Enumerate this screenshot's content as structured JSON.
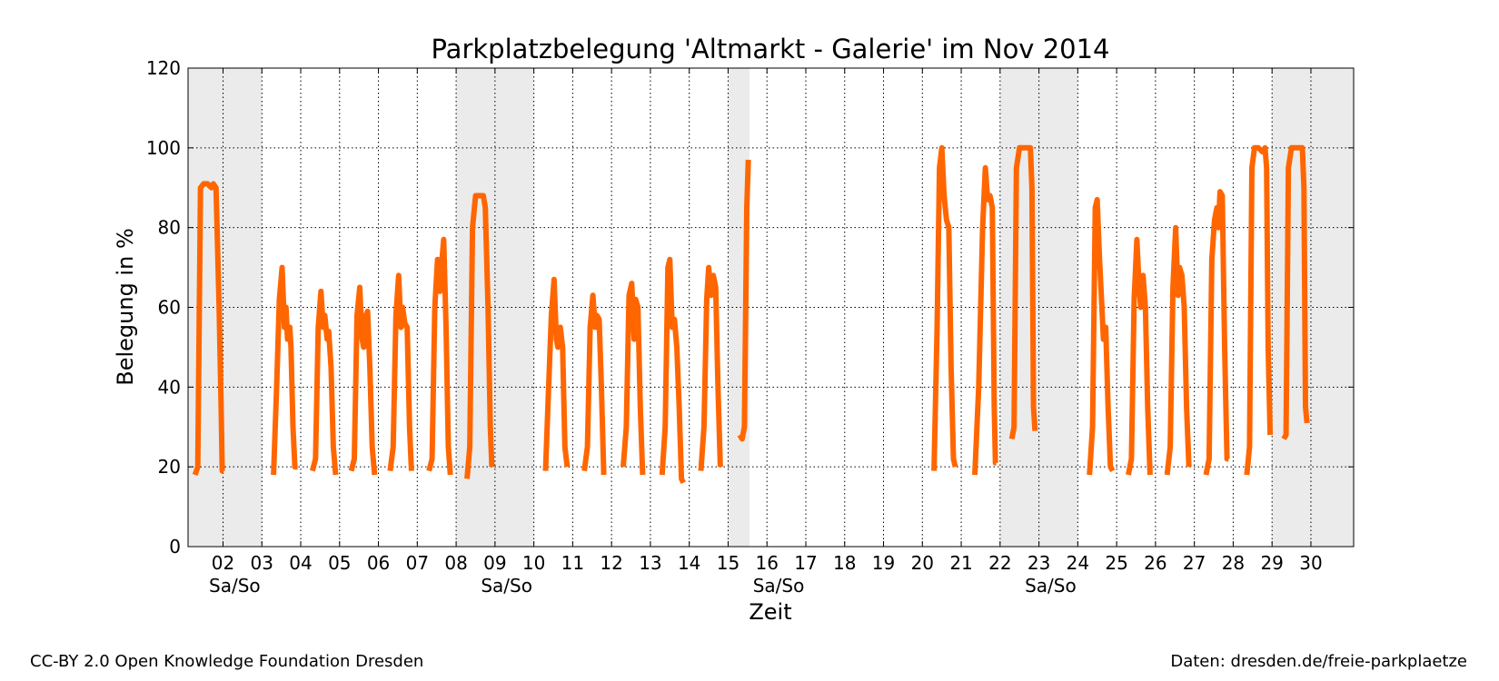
{
  "chart_data": {
    "type": "line",
    "title": "Parkplatzbelegung 'Altmarkt - Galerie' im Nov 2014",
    "xlabel": "Zeit",
    "ylabel": "Belegung in %",
    "xlim": [
      1.1,
      31.1
    ],
    "ylim": [
      0,
      120
    ],
    "yticks": [
      0,
      20,
      40,
      60,
      80,
      100,
      120
    ],
    "xtick_labels": [
      "02",
      "03",
      "04",
      "05",
      "06",
      "07",
      "08",
      "09",
      "10",
      "11",
      "12",
      "13",
      "14",
      "15",
      "16",
      "17",
      "18",
      "19",
      "20",
      "21",
      "22",
      "23",
      "24",
      "25",
      "26",
      "27",
      "28",
      "29",
      "30"
    ],
    "weekend_label": "Sa/So",
    "weekend_label_days": [
      2.3,
      9.3,
      16.3,
      23.3
    ],
    "weekend_spans": [
      [
        1.1,
        3.0
      ],
      [
        8.0,
        10.0
      ],
      [
        15.0,
        15.55
      ],
      [
        22.0,
        24.0
      ],
      [
        29.0,
        31.1
      ]
    ],
    "grid": true,
    "series": [
      {
        "color": "#ff6600",
        "segments": [
          [
            [
              1.28,
              18
            ],
            [
              1.35,
              20
            ],
            [
              1.42,
              90
            ],
            [
              1.5,
              91
            ],
            [
              1.6,
              91
            ],
            [
              1.7,
              90
            ],
            [
              1.75,
              91
            ],
            [
              1.82,
              90
            ],
            [
              1.9,
              60
            ],
            [
              1.95,
              35
            ],
            [
              1.98,
              19
            ],
            [
              2.02,
              19
            ]
          ],
          [
            [
              3.3,
              18
            ],
            [
              3.38,
              40
            ],
            [
              3.45,
              62
            ],
            [
              3.52,
              70
            ],
            [
              3.58,
              55
            ],
            [
              3.62,
              60
            ],
            [
              3.66,
              52
            ],
            [
              3.72,
              55
            ],
            [
              3.75,
              50
            ],
            [
              3.8,
              30
            ],
            [
              3.85,
              20
            ],
            [
              3.92,
              20
            ]
          ],
          [
            [
              4.3,
              19
            ],
            [
              4.38,
              22
            ],
            [
              4.45,
              55
            ],
            [
              4.52,
              64
            ],
            [
              4.58,
              55
            ],
            [
              4.62,
              58
            ],
            [
              4.68,
              52
            ],
            [
              4.72,
              54
            ],
            [
              4.78,
              45
            ],
            [
              4.84,
              25
            ],
            [
              4.9,
              18
            ]
          ],
          [
            [
              5.3,
              19
            ],
            [
              5.38,
              22
            ],
            [
              5.45,
              58
            ],
            [
              5.52,
              65
            ],
            [
              5.58,
              52
            ],
            [
              5.62,
              50
            ],
            [
              5.68,
              58
            ],
            [
              5.72,
              59
            ],
            [
              5.78,
              45
            ],
            [
              5.84,
              25
            ],
            [
              5.9,
              18
            ]
          ],
          [
            [
              6.3,
              19
            ],
            [
              6.38,
              25
            ],
            [
              6.45,
              58
            ],
            [
              6.52,
              68
            ],
            [
              6.58,
              55
            ],
            [
              6.62,
              60
            ],
            [
              6.68,
              56
            ],
            [
              6.74,
              55
            ],
            [
              6.8,
              30
            ],
            [
              6.85,
              19
            ]
          ],
          [
            [
              7.3,
              19
            ],
            [
              7.38,
              22
            ],
            [
              7.45,
              60
            ],
            [
              7.52,
              72
            ],
            [
              7.58,
              64
            ],
            [
              7.62,
              70
            ],
            [
              7.68,
              77
            ],
            [
              7.74,
              55
            ],
            [
              7.8,
              25
            ],
            [
              7.85,
              18
            ]
          ],
          [
            [
              8.28,
              17
            ],
            [
              8.35,
              25
            ],
            [
              8.42,
              80
            ],
            [
              8.5,
              88
            ],
            [
              8.6,
              88
            ],
            [
              8.7,
              88
            ],
            [
              8.75,
              85
            ],
            [
              8.82,
              60
            ],
            [
              8.88,
              30
            ],
            [
              8.92,
              20
            ]
          ],
          [
            [
              10.3,
              19
            ],
            [
              10.38,
              40
            ],
            [
              10.45,
              58
            ],
            [
              10.52,
              67
            ],
            [
              10.58,
              52
            ],
            [
              10.62,
              50
            ],
            [
              10.68,
              55
            ],
            [
              10.74,
              50
            ],
            [
              10.8,
              25
            ],
            [
              10.86,
              20
            ]
          ],
          [
            [
              11.3,
              19
            ],
            [
              11.38,
              25
            ],
            [
              11.45,
              55
            ],
            [
              11.52,
              63
            ],
            [
              11.58,
              55
            ],
            [
              11.62,
              58
            ],
            [
              11.68,
              57
            ],
            [
              11.74,
              40
            ],
            [
              11.8,
              18
            ]
          ],
          [
            [
              12.3,
              20
            ],
            [
              12.38,
              30
            ],
            [
              12.45,
              63
            ],
            [
              12.52,
              66
            ],
            [
              12.58,
              52
            ],
            [
              12.62,
              62
            ],
            [
              12.68,
              60
            ],
            [
              12.74,
              35
            ],
            [
              12.8,
              18
            ]
          ],
          [
            [
              13.3,
              18
            ],
            [
              13.38,
              30
            ],
            [
              13.45,
              70
            ],
            [
              13.5,
              72
            ],
            [
              13.56,
              55
            ],
            [
              13.62,
              57
            ],
            [
              13.68,
              50
            ],
            [
              13.74,
              35
            ],
            [
              13.8,
              17
            ],
            [
              13.85,
              16
            ]
          ],
          [
            [
              14.3,
              19
            ],
            [
              14.38,
              30
            ],
            [
              14.45,
              62
            ],
            [
              14.5,
              70
            ],
            [
              14.56,
              63
            ],
            [
              14.62,
              68
            ],
            [
              14.68,
              65
            ],
            [
              14.74,
              40
            ],
            [
              14.8,
              20
            ]
          ],
          [
            [
              15.3,
              28
            ],
            [
              15.36,
              27
            ],
            [
              15.42,
              30
            ],
            [
              15.48,
              85
            ],
            [
              15.52,
              97
            ]
          ],
          [
            [
              20.3,
              19
            ],
            [
              20.38,
              55
            ],
            [
              20.44,
              95
            ],
            [
              20.5,
              100
            ],
            [
              20.56,
              88
            ],
            [
              20.62,
              82
            ],
            [
              20.68,
              80
            ],
            [
              20.74,
              45
            ],
            [
              20.8,
              22
            ],
            [
              20.85,
              20
            ]
          ],
          [
            [
              21.35,
              18
            ],
            [
              21.45,
              40
            ],
            [
              21.55,
              80
            ],
            [
              21.62,
              95
            ],
            [
              21.68,
              87
            ],
            [
              21.74,
              88
            ],
            [
              21.8,
              85
            ],
            [
              21.85,
              35
            ],
            [
              21.88,
              21
            ],
            [
              21.9,
              21
            ]
          ],
          [
            [
              22.3,
              27
            ],
            [
              22.36,
              30
            ],
            [
              22.42,
              95
            ],
            [
              22.5,
              100
            ],
            [
              22.6,
              100
            ],
            [
              22.7,
              100
            ],
            [
              22.78,
              100
            ],
            [
              22.82,
              90
            ],
            [
              22.86,
              35
            ],
            [
              22.9,
              29
            ]
          ],
          [
            [
              24.3,
              18
            ],
            [
              24.38,
              30
            ],
            [
              24.45,
              85
            ],
            [
              24.5,
              87
            ],
            [
              24.56,
              72
            ],
            [
              24.62,
              60
            ],
            [
              24.66,
              52
            ],
            [
              24.72,
              55
            ],
            [
              24.78,
              35
            ],
            [
              24.84,
              20
            ],
            [
              24.9,
              19
            ]
          ],
          [
            [
              25.3,
              18
            ],
            [
              25.38,
              22
            ],
            [
              25.45,
              62
            ],
            [
              25.52,
              77
            ],
            [
              25.58,
              65
            ],
            [
              25.62,
              60
            ],
            [
              25.68,
              68
            ],
            [
              25.74,
              60
            ],
            [
              25.8,
              35
            ],
            [
              25.86,
              18
            ]
          ],
          [
            [
              26.3,
              18
            ],
            [
              26.38,
              25
            ],
            [
              26.45,
              65
            ],
            [
              26.52,
              80
            ],
            [
              26.58,
              63
            ],
            [
              26.62,
              70
            ],
            [
              26.68,
              68
            ],
            [
              26.74,
              60
            ],
            [
              26.8,
              35
            ],
            [
              26.86,
              20
            ]
          ],
          [
            [
              27.3,
              18
            ],
            [
              27.38,
              22
            ],
            [
              27.45,
              72
            ],
            [
              27.52,
              82
            ],
            [
              27.58,
              85
            ],
            [
              27.62,
              80
            ],
            [
              27.66,
              89
            ],
            [
              27.72,
              88
            ],
            [
              27.78,
              50
            ],
            [
              27.84,
              22
            ],
            [
              27.88,
              22
            ]
          ],
          [
            [
              28.35,
              18
            ],
            [
              28.42,
              25
            ],
            [
              28.48,
              95
            ],
            [
              28.55,
              100
            ],
            [
              28.65,
              100
            ],
            [
              28.75,
              99
            ],
            [
              28.82,
              100
            ],
            [
              28.86,
              95
            ],
            [
              28.9,
              50
            ],
            [
              28.95,
              28
            ]
          ],
          [
            [
              29.3,
              27
            ],
            [
              29.36,
              28
            ],
            [
              29.42,
              95
            ],
            [
              29.5,
              100
            ],
            [
              29.6,
              100
            ],
            [
              29.7,
              100
            ],
            [
              29.78,
              100
            ],
            [
              29.82,
              90
            ],
            [
              29.86,
              35
            ],
            [
              29.9,
              31
            ]
          ]
        ]
      }
    ]
  },
  "footer": {
    "credit_left": "CC-BY 2.0 Open Knowledge Foundation Dresden",
    "credit_right": "Daten: dresden.de/freie-parkplaetze"
  }
}
